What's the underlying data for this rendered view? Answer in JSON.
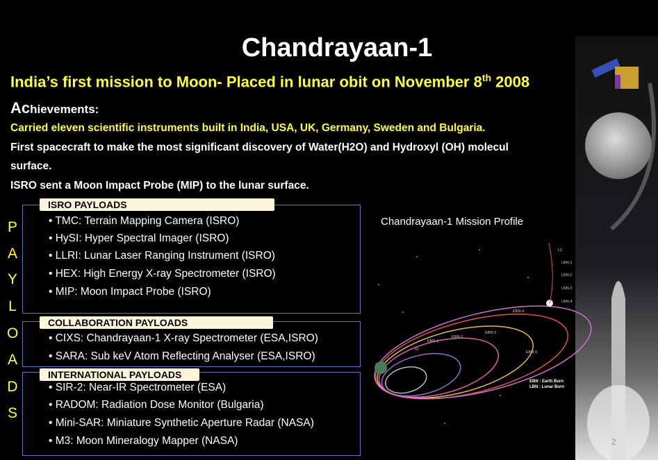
{
  "title": "Chandrayaan-1",
  "subtitle": {
    "before": "India’s first mission to Moon-  Placed in lunar obit on November 8",
    "sup": "th",
    "after": " 2008"
  },
  "achievements": {
    "lead": "Ac",
    "rest": "hievements:",
    "lines": [
      "Carried eleven scientific instruments built in India, USA, UK, Germany, Sweden and Bulgaria.",
      "First spacecraft to make the most significant discovery of Water(H2O) and Hydroxyl (OH) molecul",
      "surface.",
      "ISRO sent a Moon Impact Probe (MIP) to the lunar surface."
    ]
  },
  "sidebar": {
    "letters": [
      "P",
      "A",
      "Y",
      "L",
      "O",
      "A",
      "D",
      "S"
    ]
  },
  "payloads": [
    {
      "heading": "ISRO PAYLOADS",
      "items": [
        "TMC: Terrain Mapping Camera (ISRO)",
        "HySI: Hyper Spectral Imager (ISRO)",
        "LLRI: Lunar Laser Ranging Instrument (ISRO)",
        "HEX: High Energy  X-ray Spectrometer (ISRO)",
        "MIP: Moon Impact Probe (ISRO)"
      ]
    },
    {
      "heading": "COLLABORATION PAYLOADS",
      "items": [
        "CIXS: Chandrayaan-1 X-ray Spectrometer (ESA,ISRO)",
        "SARA: Sub keV Atom Reflecting Analyser (ESA,ISRO)"
      ]
    },
    {
      "heading": "INTERNATIONAL PAYLOADS",
      "items": [
        "SIR-2: Near-IR Spectrometer (ESA)",
        "RADOM: Radiation Dose Monitor (Bulgaria)",
        "Mini-SAR: Miniature Synthetic Aperture Radar (NASA)",
        "M3:  Moon Mineralogy Mapper (NASA)"
      ]
    }
  ],
  "diagram": {
    "title": "Chandrayaan-1 Mission Profile",
    "labels": [
      "LC",
      "LBN-1",
      "LBN-2",
      "LBN-3",
      "LBN-4",
      "EBN-4",
      "EBN-3",
      "EBN-2",
      "EBN-1",
      "IO",
      "EBN-5"
    ],
    "legend": [
      "EBN : Earth Burn",
      "LBN : Lunar Burn"
    ]
  },
  "page_number": "2"
}
